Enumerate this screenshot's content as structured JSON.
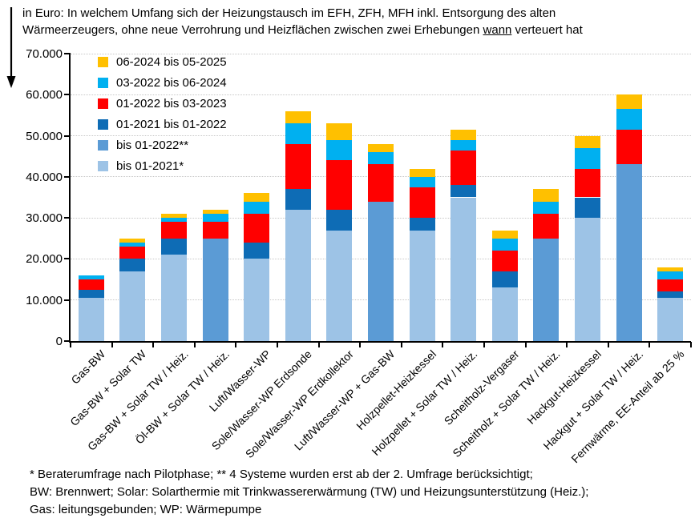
{
  "header": {
    "title_line1": "in Euro: In welchem Umfang sich der Heizungstausch im EFH, ZFH, MFH inkl. Entsorgung des alten",
    "title_line2_before": "Wärmeerzeugers, ohne neue Verrohrung und Heizflächen zwischen zwei Erhebungen ",
    "title_line2_underline": "wann",
    "title_line2_after": " verteuert hat",
    "annotation_icon": "down-arrow-icon"
  },
  "chart_data": {
    "type": "bar",
    "stacked": true,
    "title": "in Euro: In welchem Umfang sich der Heizungstausch im EFH, ZFH, MFH inkl. Entsorgung des alten Wärmeerzeugers, ohne neue Verrohrung und Heizflächen zwischen zwei Erhebungen wann verteuert hat",
    "xlabel": "",
    "ylabel": "in Euro",
    "ylim": [
      0,
      70000
    ],
    "ytick_step": 10000,
    "ytick_labels": [
      "0",
      "10.000",
      "20.000",
      "30.000",
      "40.000",
      "50.000",
      "60.000",
      "70.000"
    ],
    "grid": "horizontal dotted",
    "legend_position": "top-left inside plot, stacking order reversed (top segment first)",
    "categories": [
      "Gas-BW",
      "Gas-BW + Solar TW",
      "Gas-BW + Solar TW / Heiz.",
      "Öl-BW + Solar TW / Heiz.",
      "Luft/Wasser-WP",
      "Sole/Wasser-WP Erdsonde",
      "Sole/Wasser-WP Erdkollektor",
      "Luft/Wasser-WP + Gas-BW",
      "Holzpellet-Heizkessel",
      "Holzpellet + Solar TW / Heiz.",
      "Scheitholz-Vergaser",
      "Scheitholz + Solar TW / Heiz.",
      "Hackgut-Heizkessel",
      "Hackgut + Solar TW / Heiz.",
      "Fernwärme, EE-Anteil ab 25 %"
    ],
    "series": [
      {
        "name": "bis 01-2021*",
        "color": "#9DC3E6",
        "values": [
          10500,
          17000,
          21000,
          0,
          20000,
          32000,
          27000,
          0,
          27000,
          35000,
          13000,
          0,
          30000,
          0,
          10500
        ]
      },
      {
        "name": "bis 01-2022**",
        "color": "#5B9BD5",
        "values": [
          0,
          0,
          0,
          25000,
          0,
          0,
          0,
          34000,
          0,
          0,
          0,
          25000,
          0,
          43000,
          0
        ]
      },
      {
        "name": "01-2021 bis 01-2022",
        "color": "#0E6CB5",
        "values": [
          2000,
          3000,
          4000,
          0,
          4000,
          5000,
          5000,
          0,
          3000,
          3000,
          4000,
          0,
          5000,
          0,
          1500
        ]
      },
      {
        "name": "01-2022 bis 03-2023",
        "color": "#FF0000",
        "values": [
          2500,
          3000,
          4000,
          4000,
          7000,
          11000,
          12000,
          9000,
          7500,
          8500,
          5000,
          6000,
          7000,
          8500,
          3000
        ]
      },
      {
        "name": "03-2022 bis 06-2024",
        "color": "#00B0F0",
        "values": [
          1000,
          1000,
          1000,
          2000,
          3000,
          5000,
          5000,
          3000,
          2500,
          2500,
          3000,
          3000,
          5000,
          5000,
          2000
        ]
      },
      {
        "name": "06-2024 bis 05-2025",
        "color": "#FFC000",
        "values": [
          0,
          1000,
          1000,
          1000,
          2000,
          3000,
          4000,
          2000,
          2000,
          2500,
          2000,
          3000,
          3000,
          3500,
          1000
        ]
      }
    ],
    "totals": [
      16000,
      25000,
      31000,
      32000,
      36000,
      56000,
      53000,
      48000,
      42000,
      51500,
      27000,
      37000,
      50000,
      60000,
      18000
    ]
  },
  "footnotes": {
    "line1": "* Beraterumfrage nach Pilotphase; ** 4 Systeme wurden erst ab der 2. Umfrage berücksichtigt;",
    "line2": "BW: Brennwert; Solar: Solarthermie mit Trinkwassererwärmung (TW) und Heizungsunterstützung (Heiz.);",
    "line3": "Gas: leitungsgebunden; WP: Wärmepumpe"
  },
  "colors": {
    "background": "#FFFFFF",
    "axis": "#000000",
    "gridline": "#C6C6C6",
    "text": "#000000"
  }
}
